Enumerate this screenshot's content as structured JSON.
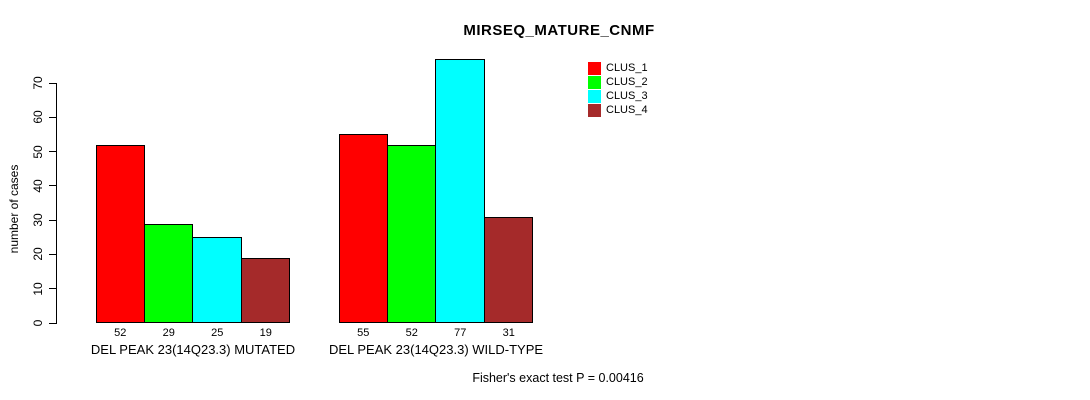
{
  "chart_data": {
    "type": "bar",
    "title": "MIRSEQ_MATURE_CNMF",
    "ylabel": "number of cases",
    "xlabel": "",
    "ylim": [
      0,
      70
    ],
    "yticks": [
      0,
      10,
      20,
      30,
      40,
      50,
      60,
      70
    ],
    "grid": false,
    "legend_position": "top-right-inside",
    "legend": [
      {
        "label": "CLUS_1",
        "color": "#FF0000"
      },
      {
        "label": "CLUS_2",
        "color": "#00FF00"
      },
      {
        "label": "CLUS_3",
        "color": "#00FFFF"
      },
      {
        "label": "CLUS_4",
        "color": "#A52A2A"
      }
    ],
    "categories": [
      "DEL PEAK 23(14Q23.3) MUTATED",
      "DEL PEAK 23(14Q23.3) WILD-TYPE"
    ],
    "series": [
      {
        "name": "CLUS_1",
        "color": "#FF0000",
        "values": [
          52,
          55
        ]
      },
      {
        "name": "CLUS_2",
        "color": "#00FF00",
        "values": [
          29,
          52
        ]
      },
      {
        "name": "CLUS_3",
        "color": "#00FFFF",
        "values": [
          25,
          77
        ]
      },
      {
        "name": "CLUS_4",
        "color": "#A52A2A",
        "values": [
          19,
          31
        ]
      }
    ],
    "bar_value_labels": [
      [
        52,
        29,
        25,
        19
      ],
      [
        55,
        52,
        77,
        31
      ]
    ],
    "annotation": "Fisher's exact test P = 0.00416"
  },
  "colors": {
    "axis": "#000000",
    "background": "#FFFFFF",
    "text": "#000000"
  }
}
